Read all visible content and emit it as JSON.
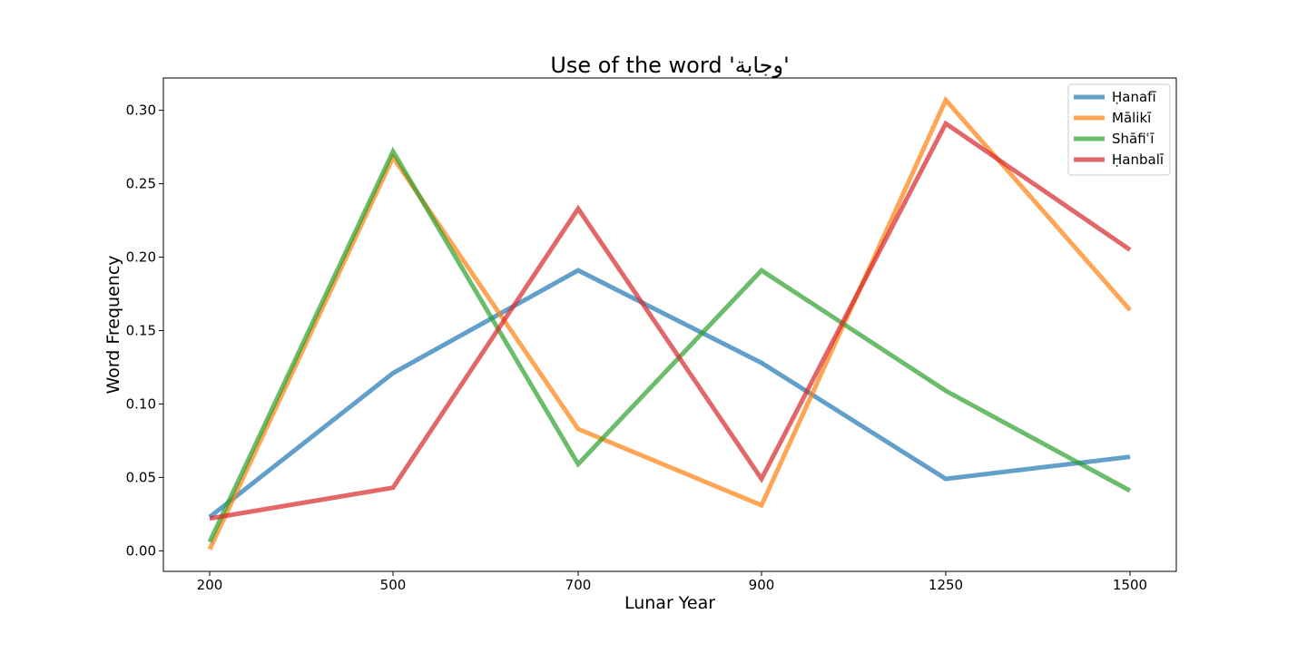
{
  "chart_data": {
    "type": "line",
    "title": "Use of the word 'وجابة'",
    "xlabel": "Lunar Year",
    "ylabel": "Word Frequency",
    "categories": [
      "200",
      "500",
      "700",
      "900",
      "1250",
      "1500"
    ],
    "ylim": [
      -0.014,
      0.322
    ],
    "yticks": [
      "0.00",
      "0.05",
      "0.10",
      "0.15",
      "0.20",
      "0.25",
      "0.30"
    ],
    "legend_position": "top-right",
    "grid": false,
    "series": [
      {
        "name": "Ḥanafī",
        "color": "#1f77b4",
        "values": [
          0.023,
          0.121,
          0.191,
          0.128,
          0.049,
          0.064
        ]
      },
      {
        "name": "Mālikī",
        "color": "#ff7f0e",
        "values": [
          0.001,
          0.268,
          0.083,
          0.031,
          0.307,
          0.164
        ]
      },
      {
        "name": "Shāfiʿī",
        "color": "#2ca02c",
        "values": [
          0.006,
          0.272,
          0.059,
          0.191,
          0.109,
          0.041
        ]
      },
      {
        "name": "Ḥanbalī",
        "color": "#d62728",
        "values": [
          0.022,
          0.043,
          0.233,
          0.049,
          0.291,
          0.205
        ]
      }
    ]
  }
}
